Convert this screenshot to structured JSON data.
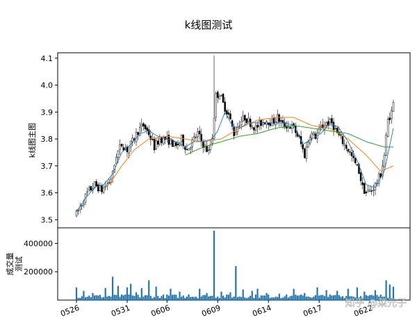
{
  "watermark": "知乎 @菜元子",
  "chart_data": [
    {
      "type": "candlestick",
      "title": "k线图测试",
      "ylabel": "k线图主图",
      "xlabel": "",
      "ylim": [
        3.47,
        4.12
      ],
      "yticks": [
        "3.5",
        "3.6",
        "3.7",
        "3.8",
        "3.9",
        "4.0",
        "4.1"
      ],
      "xticks": [
        "0526",
        "0531",
        "0606",
        "0609",
        "0614",
        "0617",
        "0622"
      ],
      "xtick_bars": [
        0,
        28,
        50,
        78,
        106,
        134,
        162
      ],
      "grid": false,
      "colors": {
        "up": "#ffffff",
        "down": "#000000",
        "wick": "#000000",
        "ma_short": "#1f77b4",
        "ma_mid": "#2ca02c",
        "ma_long": "#ff7f0e"
      },
      "keypoints": [
        [
          0,
          3.52
        ],
        [
          3,
          3.56
        ],
        [
          6,
          3.6
        ],
        [
          10,
          3.63
        ],
        [
          14,
          3.61
        ],
        [
          18,
          3.64
        ],
        [
          20,
          3.67
        ],
        [
          22,
          3.74
        ],
        [
          25,
          3.78
        ],
        [
          28,
          3.76
        ],
        [
          31,
          3.79
        ],
        [
          34,
          3.83
        ],
        [
          37,
          3.85
        ],
        [
          40,
          3.82
        ],
        [
          43,
          3.77
        ],
        [
          46,
          3.8
        ],
        [
          49,
          3.8
        ],
        [
          52,
          3.79
        ],
        [
          55,
          3.77
        ],
        [
          58,
          3.8
        ],
        [
          61,
          3.76
        ],
        [
          64,
          3.79
        ],
        [
          67,
          3.82
        ],
        [
          70,
          3.78
        ],
        [
          73,
          3.75
        ],
        [
          75,
          3.81
        ],
        [
          77,
          3.96
        ],
        [
          79,
          3.97
        ],
        [
          81,
          3.93
        ],
        [
          84,
          3.89
        ],
        [
          87,
          3.82
        ],
        [
          90,
          3.86
        ],
        [
          93,
          3.88
        ],
        [
          96,
          3.86
        ],
        [
          99,
          3.84
        ],
        [
          102,
          3.86
        ],
        [
          105,
          3.87
        ],
        [
          108,
          3.86
        ],
        [
          111,
          3.88
        ],
        [
          114,
          3.85
        ],
        [
          117,
          3.85
        ],
        [
          120,
          3.84
        ],
        [
          123,
          3.8
        ],
        [
          126,
          3.74
        ],
        [
          129,
          3.82
        ],
        [
          132,
          3.81
        ],
        [
          135,
          3.84
        ],
        [
          138,
          3.86
        ],
        [
          141,
          3.86
        ],
        [
          144,
          3.82
        ],
        [
          147,
          3.79
        ],
        [
          150,
          3.76
        ],
        [
          153,
          3.72
        ],
        [
          156,
          3.68
        ],
        [
          158,
          3.62
        ],
        [
          160,
          3.6
        ],
        [
          163,
          3.61
        ],
        [
          166,
          3.64
        ],
        [
          168,
          3.67
        ],
        [
          170,
          3.74
        ],
        [
          172,
          3.87
        ],
        [
          174,
          3.9
        ],
        [
          175,
          3.93
        ]
      ],
      "spikes": [
        [
          76,
          4.11,
          3.87
        ]
      ],
      "ma_short": [
        [
          0,
          3.53
        ],
        [
          5,
          3.58
        ],
        [
          10,
          3.62
        ],
        [
          15,
          3.63
        ],
        [
          20,
          3.67
        ],
        [
          25,
          3.75
        ],
        [
          30,
          3.78
        ],
        [
          35,
          3.82
        ],
        [
          40,
          3.83
        ],
        [
          45,
          3.81
        ],
        [
          50,
          3.8
        ],
        [
          55,
          3.79
        ],
        [
          60,
          3.77
        ],
        [
          65,
          3.79
        ],
        [
          70,
          3.79
        ],
        [
          75,
          3.8
        ],
        [
          78,
          3.83
        ],
        [
          82,
          3.9
        ],
        [
          86,
          3.85
        ],
        [
          90,
          3.84
        ],
        [
          95,
          3.86
        ],
        [
          100,
          3.86
        ],
        [
          105,
          3.86
        ],
        [
          110,
          3.86
        ],
        [
          115,
          3.86
        ],
        [
          120,
          3.85
        ],
        [
          125,
          3.78
        ],
        [
          130,
          3.8
        ],
        [
          135,
          3.82
        ],
        [
          140,
          3.86
        ],
        [
          145,
          3.84
        ],
        [
          150,
          3.79
        ],
        [
          155,
          3.72
        ],
        [
          160,
          3.63
        ],
        [
          165,
          3.62
        ],
        [
          170,
          3.68
        ],
        [
          175,
          3.84
        ]
      ],
      "ma_mid": [
        [
          60,
          3.74
        ],
        [
          70,
          3.77
        ],
        [
          80,
          3.79
        ],
        [
          90,
          3.81
        ],
        [
          100,
          3.82
        ],
        [
          110,
          3.84
        ],
        [
          120,
          3.85
        ],
        [
          130,
          3.84
        ],
        [
          140,
          3.83
        ],
        [
          150,
          3.82
        ],
        [
          160,
          3.79
        ],
        [
          170,
          3.77
        ],
        [
          175,
          3.77
        ]
      ],
      "ma_long": [
        [
          18,
          3.63
        ],
        [
          25,
          3.7
        ],
        [
          32,
          3.76
        ],
        [
          40,
          3.8
        ],
        [
          50,
          3.81
        ],
        [
          60,
          3.8
        ],
        [
          70,
          3.79
        ],
        [
          80,
          3.8
        ],
        [
          90,
          3.84
        ],
        [
          100,
          3.87
        ],
        [
          110,
          3.88
        ],
        [
          120,
          3.88
        ],
        [
          130,
          3.85
        ],
        [
          140,
          3.84
        ],
        [
          150,
          3.8
        ],
        [
          160,
          3.74
        ],
        [
          168,
          3.68
        ],
        [
          175,
          3.7
        ]
      ]
    },
    {
      "type": "bar",
      "title": "",
      "ylabel": "成交量测试",
      "xlabel": "",
      "ylim": [
        0,
        510000
      ],
      "yticks": [
        "200000",
        "400000"
      ],
      "ytick_values": [
        200000,
        400000
      ],
      "color": "#1f77b4",
      "n_bars": 176,
      "base_volume": 30000,
      "peaks": [
        [
          0,
          90000
        ],
        [
          4,
          65000
        ],
        [
          9,
          50000
        ],
        [
          16,
          85000
        ],
        [
          20,
          165000
        ],
        [
          23,
          100000
        ],
        [
          28,
          90000
        ],
        [
          30,
          115000
        ],
        [
          33,
          55000
        ],
        [
          36,
          85000
        ],
        [
          40,
          140000
        ],
        [
          44,
          95000
        ],
        [
          52,
          80000
        ],
        [
          57,
          60000
        ],
        [
          62,
          40000
        ],
        [
          68,
          80000
        ],
        [
          72,
          50000
        ],
        [
          76,
          490000
        ],
        [
          80,
          60000
        ],
        [
          85,
          55000
        ],
        [
          88,
          240000
        ],
        [
          92,
          75000
        ],
        [
          97,
          65000
        ],
        [
          100,
          80000
        ],
        [
          105,
          50000
        ],
        [
          112,
          45000
        ],
        [
          120,
          80000
        ],
        [
          126,
          50000
        ],
        [
          133,
          90000
        ],
        [
          138,
          70000
        ],
        [
          144,
          65000
        ],
        [
          150,
          80000
        ],
        [
          155,
          90000
        ],
        [
          159,
          60000
        ],
        [
          165,
          70000
        ],
        [
          171,
          140000
        ],
        [
          173,
          110000
        ],
        [
          175,
          95000
        ]
      ]
    }
  ]
}
